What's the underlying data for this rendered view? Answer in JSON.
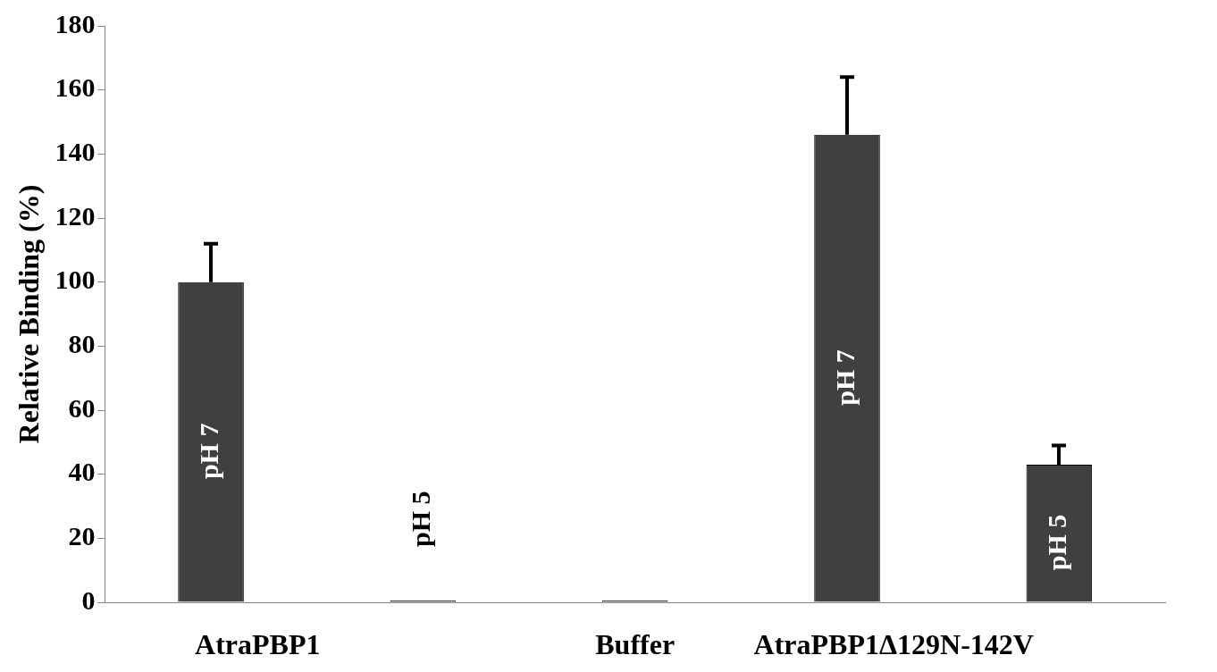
{
  "chart_data": {
    "type": "bar",
    "ylabel": "Relative Binding (%)",
    "categories": [
      "AtraPBP1",
      null,
      "Buffer",
      "AtraPBP1Δ129N-142V",
      null
    ],
    "values": [
      100,
      0,
      0,
      146,
      43
    ],
    "errors": [
      [
        100,
        112
      ],
      null,
      null,
      [
        146,
        164
      ],
      [
        43,
        49
      ]
    ],
    "value_labels": [
      "pH 7",
      "pH 5",
      null,
      "pH 7",
      "pH 5"
    ],
    "color": "#404040",
    "ylim": [
      0,
      180
    ],
    "yticks": [
      0,
      20,
      40,
      60,
      80,
      100,
      120,
      140,
      160,
      180
    ],
    "grid": false,
    "legend": false
  }
}
